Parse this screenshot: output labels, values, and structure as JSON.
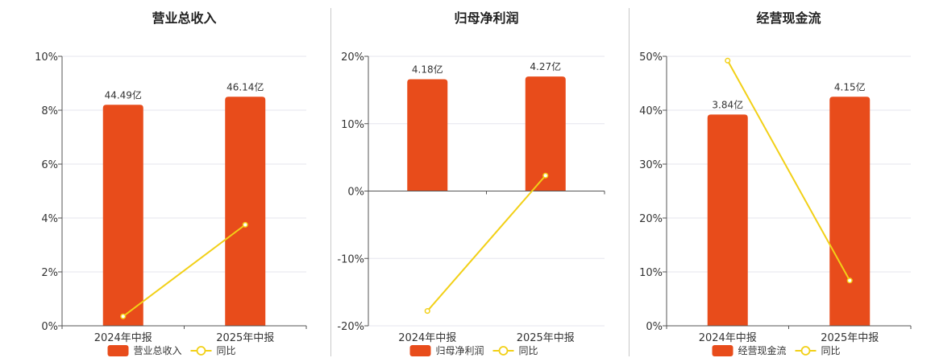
{
  "colors": {
    "bar": "#e84c1b",
    "line": "#f2d017",
    "grid": "#e6e6ee",
    "axis": "#555555"
  },
  "chart_data": [
    {
      "type": "bar",
      "title": "营业总收入",
      "categories": [
        "2024年中报",
        "2025年中报"
      ],
      "series": [
        {
          "name": "营业总收入",
          "type": "bar",
          "values": [
            8.2,
            8.5
          ],
          "labels": [
            "44.49亿",
            "46.14亿"
          ]
        },
        {
          "name": "同比",
          "type": "line",
          "values": [
            0.35,
            3.75
          ]
        }
      ],
      "y_ticks": [
        "10%",
        "8%",
        "6%",
        "4%",
        "2%",
        "0%"
      ],
      "ylim": [
        0,
        10
      ],
      "grid": true,
      "legend": "bottom"
    },
    {
      "type": "bar",
      "title": "归母净利润",
      "categories": [
        "2024年中报",
        "2025年中报"
      ],
      "series": [
        {
          "name": "归母净利润",
          "type": "bar",
          "values": [
            16.6,
            17.0
          ],
          "labels": [
            "4.18亿",
            "4.27亿"
          ]
        },
        {
          "name": "同比",
          "type": "line",
          "values": [
            -17.8,
            2.3
          ]
        }
      ],
      "y_ticks": [
        "20%",
        "10%",
        "0%",
        "-10%",
        "-20%"
      ],
      "ylim": [
        -20,
        20
      ],
      "grid": true,
      "legend": "bottom"
    },
    {
      "type": "bar",
      "title": "经营现金流",
      "categories": [
        "2024年中报",
        "2025年中报"
      ],
      "series": [
        {
          "name": "经营现金流",
          "type": "bar",
          "values": [
            39.2,
            42.5
          ],
          "labels": [
            "3.84亿",
            "4.15亿"
          ]
        },
        {
          "name": "同比",
          "type": "line",
          "values": [
            49.2,
            8.4
          ]
        }
      ],
      "y_ticks": [
        "50%",
        "40%",
        "30%",
        "20%",
        "10%",
        "0%"
      ],
      "ylim": [
        0,
        50
      ],
      "grid": true,
      "legend": "bottom"
    }
  ]
}
